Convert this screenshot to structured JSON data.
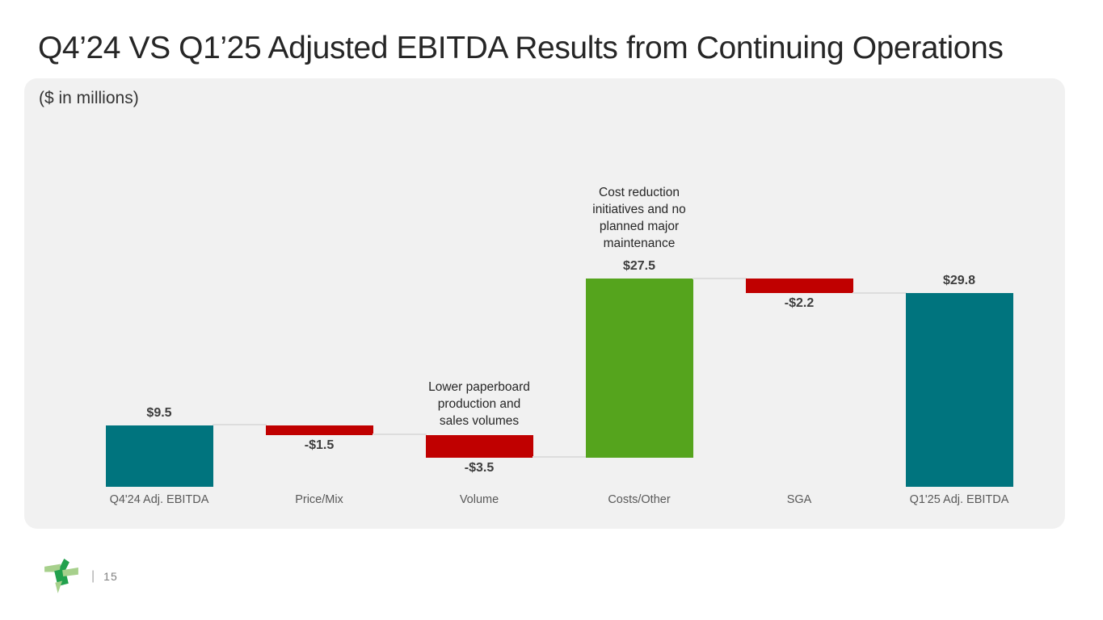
{
  "slide": {
    "title": "Q4’24 VS Q1’25 Adjusted EBITDA Results from Continuing Operations",
    "units_label": "($ in millions)",
    "page_number": "15",
    "page_divider": "|"
  },
  "footer": {
    "logo_icon": "company-pinwheel-logo"
  },
  "chart_data": {
    "type": "waterfall",
    "title": "Q4'24 VS Q1'25 Adjusted EBITDA Results from Continuing Operations",
    "units": "$ in millions",
    "value_axis_hidden": true,
    "grid": false,
    "baseline_value": 0,
    "max_value": 32.0,
    "categories": [
      "Q4'24 Adj. EBITDA",
      "Price/Mix",
      "Volume",
      "Costs/Other",
      "SGA",
      "Q1'25 Adj. EBITDA"
    ],
    "bars": [
      {
        "label": "Q4'24 Adj. EBITDA",
        "kind": "total",
        "value": 9.5,
        "display": "$9.5",
        "color": "teal",
        "value_label_position": "above"
      },
      {
        "label": "Price/Mix",
        "kind": "delta",
        "value": -1.5,
        "display": "-$1.5",
        "color": "red",
        "value_label_position": "below"
      },
      {
        "label": "Volume",
        "kind": "delta",
        "value": -3.5,
        "display": "-$3.5",
        "color": "red",
        "value_label_position": "below",
        "annotation": "Lower paperboard\nproduction and\nsales volumes"
      },
      {
        "label": "Costs/Other",
        "kind": "delta",
        "value": 27.5,
        "display": "$27.5",
        "color": "green",
        "value_label_position": "above",
        "annotation": "Cost reduction\ninitiatives and no\nplanned major\nmaintenance"
      },
      {
        "label": "SGA",
        "kind": "delta",
        "value": -2.2,
        "display": "-$2.2",
        "color": "red",
        "value_label_position": "below"
      },
      {
        "label": "Q1'25 Adj. EBITDA",
        "kind": "total",
        "value": 29.8,
        "display": "$29.8",
        "color": "teal",
        "value_label_position": "above"
      }
    ],
    "colors": {
      "teal": "#00747e",
      "red": "#c00000",
      "green": "#55a41d",
      "connector": "#dddddd",
      "panel_background": "#f1f1f1",
      "logo_dark_green": "#22a14d",
      "logo_light_green": "#a7d08c"
    }
  }
}
